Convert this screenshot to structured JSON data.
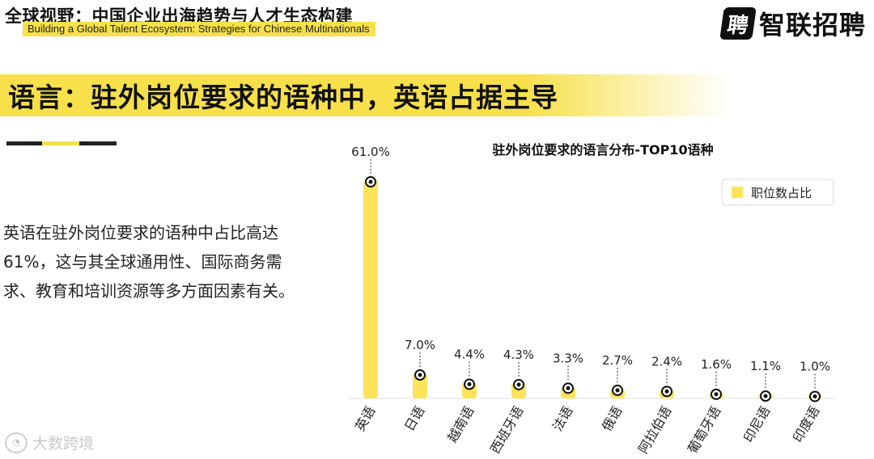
{
  "header": {
    "title": "全球视野：中国企业出海趋势与人才生态构建",
    "subtitle": "Building a Global Talent Ecosystem: Strategies for Chinese Multinationals"
  },
  "logo": {
    "mark": "聘",
    "text": "智联招聘",
    "icon": "zhaopin-logo-icon"
  },
  "headline": "语言：驻外岗位要求的语种中，英语占据主导",
  "body_text": "英语在驻外岗位要求的语种中占比高达61%，这与其全球通用性、国际商务需求、教育和培训资源等多方面因素有关。",
  "watermark": {
    "text": "大数跨境",
    "icon": "brand-watermark-icon"
  },
  "colors": {
    "accent": "#f7e04a",
    "bar": "#fce35a",
    "dark": "#111111"
  },
  "chart_data": {
    "type": "bar",
    "title": "驻外岗位要求的语言分布-TOP10语种",
    "categories": [
      "英语",
      "日语",
      "越南语",
      "西班牙语",
      "法语",
      "俄语",
      "阿拉伯语",
      "葡萄牙语",
      "印尼语",
      "印度语"
    ],
    "series": [
      {
        "name": "职位数占比",
        "values": [
          61.0,
          7.0,
          4.4,
          4.3,
          3.3,
          2.7,
          2.4,
          1.6,
          1.1,
          1.0
        ],
        "labels": [
          "61.0%",
          "7.0%",
          "4.4%",
          "4.3%",
          "3.3%",
          "2.7%",
          "2.4%",
          "1.6%",
          "1.1%",
          "1.0%"
        ]
      }
    ],
    "ylim": [
      0,
      61
    ],
    "grid": false,
    "legend_position": "top-right",
    "xlabel": "",
    "ylabel": ""
  }
}
